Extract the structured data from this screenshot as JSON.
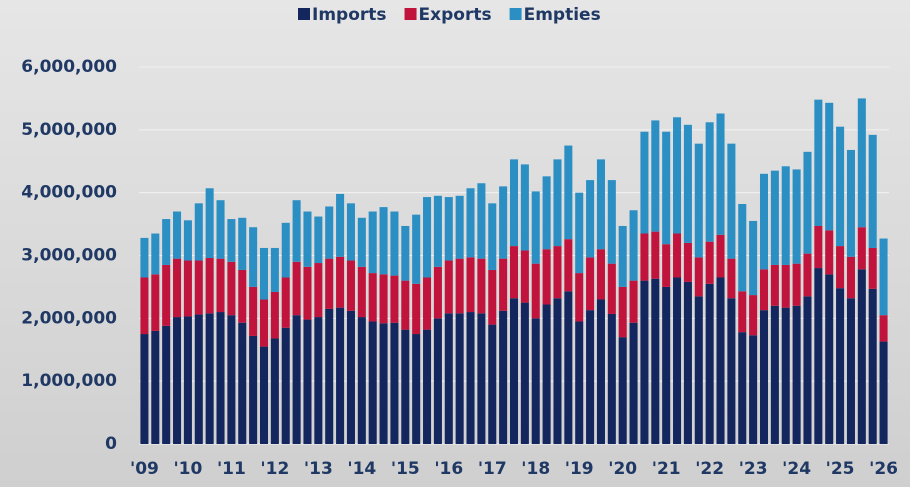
{
  "chart_data": {
    "type": "stacked-bar",
    "categories": [
      "'09",
      null,
      null,
      null,
      "'10",
      null,
      null,
      null,
      "'11",
      null,
      null,
      null,
      "'12",
      null,
      null,
      null,
      "'13",
      null,
      null,
      null,
      "'14",
      null,
      null,
      null,
      "'15",
      null,
      null,
      null,
      "'16",
      null,
      null,
      null,
      "'17",
      null,
      null,
      null,
      "'18",
      null,
      null,
      null,
      "'19",
      null,
      null,
      null,
      "'20",
      null,
      null,
      null,
      "'21",
      null,
      null,
      null,
      "'22",
      null,
      null,
      null,
      "'23",
      null,
      null,
      null,
      "'24",
      null,
      null,
      null,
      "'25",
      null,
      null,
      null,
      "'26"
    ],
    "series": [
      {
        "name": "Imports",
        "color": "#14265e",
        "values": [
          1750000,
          1800000,
          1880000,
          2020000,
          2030000,
          2060000,
          2080000,
          2100000,
          2050000,
          1930000,
          1720000,
          1550000,
          1680000,
          1850000,
          2050000,
          1980000,
          2020000,
          2150000,
          2170000,
          2120000,
          2020000,
          1950000,
          1920000,
          1930000,
          1820000,
          1750000,
          1820000,
          2000000,
          2080000,
          2080000,
          2100000,
          2080000,
          1900000,
          2120000,
          2320000,
          2250000,
          2000000,
          2220000,
          2320000,
          2430000,
          1950000,
          2130000,
          2300000,
          2070000,
          1700000,
          1930000,
          2600000,
          2630000,
          2500000,
          2650000,
          2580000,
          2350000,
          2550000,
          2650000,
          2320000,
          1780000,
          1730000,
          2130000,
          2200000,
          2170000,
          2200000,
          2350000,
          2800000,
          2700000,
          2480000,
          2320000,
          2780000,
          2470000,
          1630000
        ]
      },
      {
        "name": "Exports",
        "color": "#c0143c",
        "values": [
          900000,
          900000,
          970000,
          930000,
          890000,
          860000,
          880000,
          850000,
          850000,
          840000,
          780000,
          750000,
          740000,
          800000,
          850000,
          840000,
          860000,
          800000,
          810000,
          800000,
          800000,
          770000,
          780000,
          750000,
          780000,
          800000,
          830000,
          820000,
          840000,
          870000,
          870000,
          870000,
          870000,
          830000,
          830000,
          830000,
          870000,
          880000,
          830000,
          830000,
          770000,
          840000,
          800000,
          800000,
          800000,
          670000,
          750000,
          750000,
          680000,
          700000,
          620000,
          620000,
          670000,
          680000,
          630000,
          650000,
          640000,
          650000,
          650000,
          680000,
          670000,
          680000,
          670000,
          700000,
          670000,
          660000,
          670000,
          650000,
          420000
        ]
      },
      {
        "name": "Empties",
        "color": "#2b8fc4",
        "values": [
          630000,
          650000,
          730000,
          750000,
          640000,
          910000,
          1110000,
          930000,
          680000,
          830000,
          950000,
          820000,
          700000,
          870000,
          980000,
          880000,
          740000,
          830000,
          1000000,
          910000,
          780000,
          980000,
          1070000,
          1020000,
          870000,
          1100000,
          1280000,
          1130000,
          1010000,
          1000000,
          1100000,
          1200000,
          1060000,
          1150000,
          1380000,
          1370000,
          1150000,
          1160000,
          1380000,
          1490000,
          1280000,
          1230000,
          1430000,
          1330000,
          970000,
          1120000,
          1620000,
          1770000,
          1790000,
          1850000,
          1880000,
          1810000,
          1900000,
          1930000,
          1830000,
          1390000,
          1180000,
          1520000,
          1500000,
          1570000,
          1500000,
          1620000,
          2010000,
          2030000,
          1900000,
          1700000,
          2050000,
          1800000,
          1220000
        ]
      }
    ],
    "ylim": [
      0,
      6000000
    ],
    "yticks": [
      0,
      {
        "value": 1000000,
        "label": "1,000,000"
      },
      {
        "value": 2000000,
        "label": "2,000,000"
      },
      {
        "value": 3000000,
        "label": "3,000,000"
      },
      {
        "value": 4000000,
        "label": "4,000,000"
      },
      {
        "value": 5000000,
        "label": "5,000,000"
      },
      {
        "value": 6000000,
        "label": "6,000,000"
      }
    ],
    "grid": true,
    "legend": "top"
  }
}
